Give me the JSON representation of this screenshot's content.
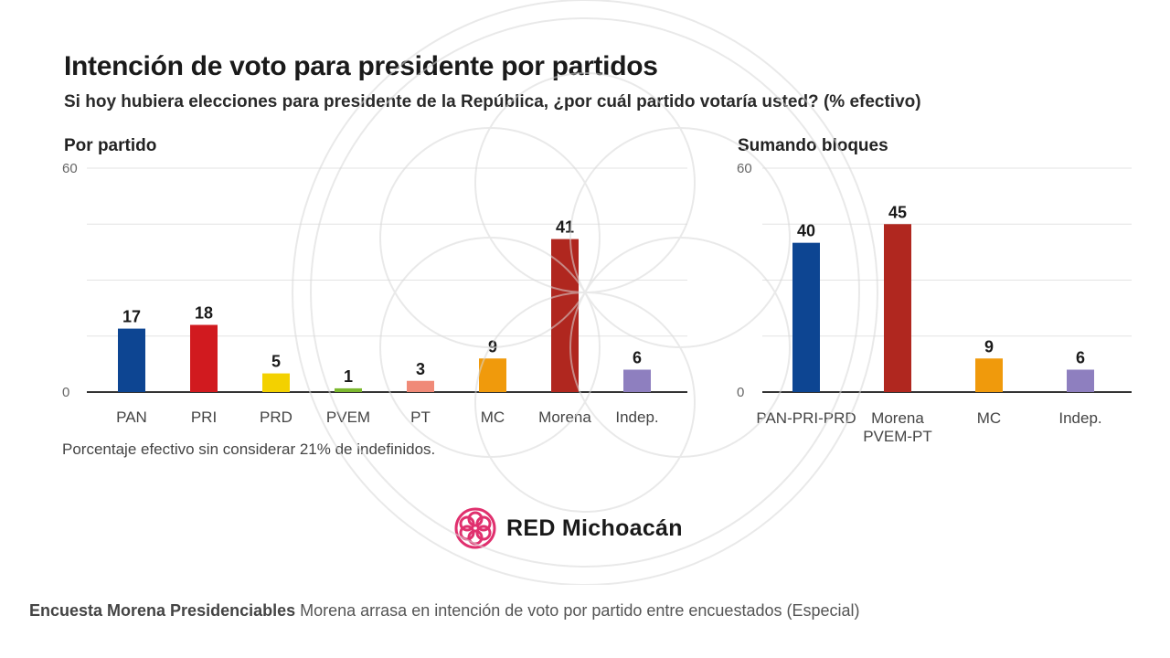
{
  "title": "Intención de voto para presidente por partidos",
  "subtitle": "Si hoy hubiera elecciones para presidente de la República, ¿por cuál partido votaría usted? (% efectivo)",
  "footnote": "Porcentaje efectivo sin considerar 21% de indefinidos.",
  "logo": {
    "text": "RED Michoacán",
    "color": "#e0306e"
  },
  "caption": {
    "bold": "Encuesta Morena Presidenciables",
    "text": "Morena arrasa en intención de voto por partido entre encuestados (Especial)"
  },
  "chart_data": [
    {
      "type": "bar",
      "title": "Por partido",
      "categories": [
        "PAN",
        "PRI",
        "PRD",
        "PVEM",
        "PT",
        "MC",
        "Morena",
        "Indep."
      ],
      "values": [
        17,
        18,
        5,
        1,
        3,
        9,
        41,
        6
      ],
      "colors": [
        "#0d4592",
        "#d11a1f",
        "#f3d100",
        "#7cb82f",
        "#f08a78",
        "#f09a0c",
        "#b0271f",
        "#8e7fbf"
      ],
      "ylim": [
        0,
        60
      ],
      "yticks": [
        0,
        60
      ],
      "grid": true
    },
    {
      "type": "bar",
      "title": "Sumando bloques",
      "categories": [
        [
          "PAN-PRI-PRD"
        ],
        [
          "Morena",
          "PVEM-PT"
        ],
        [
          "MC"
        ],
        [
          "Indep."
        ]
      ],
      "values": [
        40,
        45,
        9,
        6
      ],
      "colors": [
        "#0d4592",
        "#b0271f",
        "#f09a0c",
        "#8e7fbf"
      ],
      "ylim": [
        0,
        60
      ],
      "yticks": [
        0,
        60
      ],
      "grid": true
    }
  ]
}
